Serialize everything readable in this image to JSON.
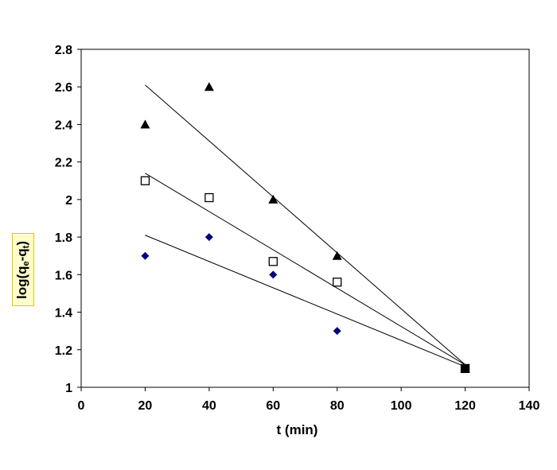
{
  "chart_data": {
    "type": "scatter",
    "title": "",
    "xlabel": "t (min)",
    "ylabel": {
      "prefix": "log(q",
      "sub1": "e",
      "mid": "-q",
      "sub2": "t",
      "suffix": ")"
    },
    "xlim": [
      0,
      140
    ],
    "ylim": [
      1,
      2.8
    ],
    "xticks": [
      0,
      20,
      40,
      60,
      80,
      100,
      120,
      140
    ],
    "yticks": [
      1,
      1.2,
      1.4,
      1.6,
      1.8,
      2,
      2.2,
      2.4,
      2.6,
      2.8
    ],
    "ytick_labels": [
      "1",
      "1.2",
      "1.4",
      "1.6",
      "1.8",
      "2",
      "2.2",
      "2.4",
      "2.6",
      "2.8"
    ],
    "grid": false,
    "series": [
      {
        "name": "triangles",
        "marker": "triangle",
        "color": "#000000",
        "x": [
          20,
          40,
          60,
          80,
          120
        ],
        "y": [
          2.4,
          2.6,
          2.0,
          1.7,
          1.1
        ],
        "trend": {
          "x": [
            20,
            120
          ],
          "y": [
            2.61,
            1.12
          ]
        }
      },
      {
        "name": "squares",
        "marker": "square-open",
        "color": "#000000",
        "x": [
          20,
          40,
          60,
          80,
          120
        ],
        "y": [
          2.1,
          2.01,
          1.67,
          1.56,
          1.1
        ],
        "trend": {
          "x": [
            20,
            120
          ],
          "y": [
            2.14,
            1.12
          ]
        }
      },
      {
        "name": "diamonds",
        "marker": "diamond",
        "color": "#000080",
        "x": [
          20,
          40,
          60,
          80,
          120
        ],
        "y": [
          1.7,
          1.8,
          1.6,
          1.3,
          1.1
        ],
        "trend": {
          "x": [
            20,
            120
          ],
          "y": [
            1.81,
            1.11
          ]
        }
      }
    ]
  }
}
